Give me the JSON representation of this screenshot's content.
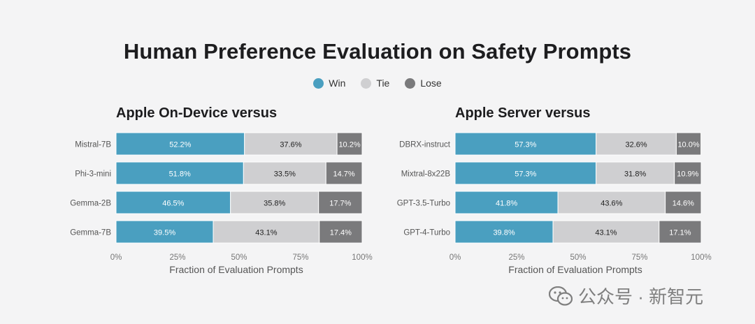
{
  "title": "Human Preference Evaluation on Safety Prompts",
  "legend": [
    {
      "label": "Win",
      "color": "#4a9fc0"
    },
    {
      "label": "Tie",
      "color": "#cfcfd1"
    },
    {
      "label": "Lose",
      "color": "#7a7a7c"
    }
  ],
  "watermark": "公众号 · 新智元",
  "chart_data": [
    {
      "type": "bar",
      "orientation": "horizontal",
      "stacked": true,
      "title": "Apple On-Device versus",
      "xlabel": "Fraction of Evaluation Prompts",
      "xlim": [
        0,
        100
      ],
      "xticks": [
        "0%",
        "25%",
        "50%",
        "75%",
        "100%"
      ],
      "categories": [
        "Mistral-7B",
        "Phi-3-mini",
        "Gemma-2B",
        "Gemma-7B"
      ],
      "series": [
        {
          "name": "Win",
          "values": [
            52.2,
            51.8,
            46.5,
            39.5
          ],
          "labels": [
            "52.2%",
            "51.8%",
            "46.5%",
            "39.5%"
          ]
        },
        {
          "name": "Tie",
          "values": [
            37.6,
            33.5,
            35.8,
            43.1
          ],
          "labels": [
            "37.6%",
            "33.5%",
            "35.8%",
            "43.1%"
          ]
        },
        {
          "name": "Lose",
          "values": [
            10.2,
            14.7,
            17.7,
            17.4
          ],
          "labels": [
            "10.2%",
            "14.7%",
            "17.7%",
            "17.4%"
          ]
        }
      ]
    },
    {
      "type": "bar",
      "orientation": "horizontal",
      "stacked": true,
      "title": "Apple Server versus",
      "xlabel": "Fraction of Evaluation Prompts",
      "xlim": [
        0,
        100
      ],
      "xticks": [
        "0%",
        "25%",
        "50%",
        "75%",
        "100%"
      ],
      "categories": [
        "DBRX-instruct",
        "Mixtral-8x22B",
        "GPT-3.5-Turbo",
        "GPT-4-Turbo"
      ],
      "series": [
        {
          "name": "Win",
          "values": [
            57.3,
            57.3,
            41.8,
            39.8
          ],
          "labels": [
            "57.3%",
            "57.3%",
            "41.8%",
            "39.8%"
          ]
        },
        {
          "name": "Tie",
          "values": [
            32.6,
            31.8,
            43.6,
            43.1
          ],
          "labels": [
            "32.6%",
            "31.8%",
            "43.6%",
            "43.1%"
          ]
        },
        {
          "name": "Lose",
          "values": [
            10.0,
            10.9,
            14.6,
            17.1
          ],
          "labels": [
            "10.0%",
            "10.9%",
            "14.6%",
            "17.1%"
          ]
        }
      ]
    }
  ]
}
